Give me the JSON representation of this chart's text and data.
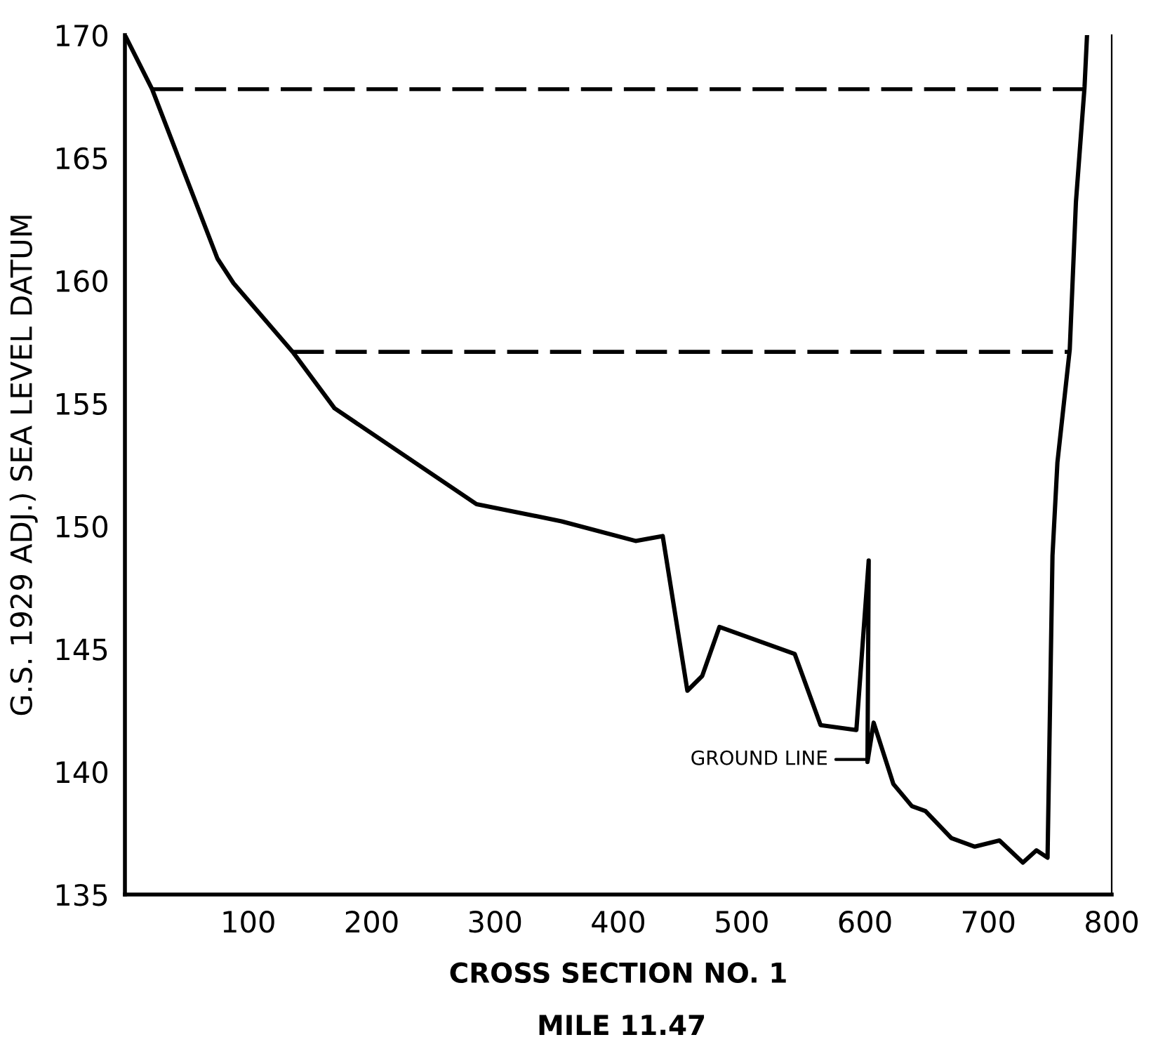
{
  "chart_data": {
    "type": "line",
    "xlabel": "CROSS SECTION NO. 1",
    "ylabel": "G.S. 1929 ADJ.) SEA LEVEL DATUM",
    "annotations": [
      "MILE 11.47",
      {
        "text": "GROUND LINE",
        "x": 600,
        "y": 140.5
      }
    ],
    "series": [
      {
        "color": "#000000",
        "line_style": "solid",
        "x": [
          0,
          22,
          75,
          88,
          136,
          170,
          285,
          354,
          414,
          436,
          456,
          468,
          482,
          543,
          564,
          593,
          603,
          602,
          607,
          623,
          638,
          649,
          670,
          689,
          709,
          728,
          739,
          748,
          752,
          756,
          766,
          771,
          778,
          780
        ],
        "values": [
          170,
          167.8,
          160.9,
          159.9,
          157.1,
          154.8,
          150.9,
          150.2,
          149.4,
          149.6,
          143.3,
          143.9,
          145.9,
          144.8,
          141.9,
          141.7,
          148.6,
          140.4,
          142.0,
          139.5,
          138.6,
          138.4,
          137.3,
          136.95,
          137.2,
          136.3,
          136.8,
          136.5,
          148.8,
          152.6,
          157.2,
          163.2,
          167.9,
          170
        ]
      },
      {
        "color": "#000000",
        "line_style": "dashed",
        "x": [
          22,
          778
        ],
        "values": [
          167.8,
          167.8
        ]
      },
      {
        "color": "#000000",
        "line_style": "dashed",
        "x": [
          136,
          766
        ],
        "values": [
          157.1,
          157.1
        ]
      }
    ],
    "xlim": [
      0,
      800
    ],
    "xticks": [
      100,
      200,
      300,
      400,
      500,
      600,
      700,
      800
    ],
    "ylim": [
      135,
      170
    ],
    "yticks": [
      135,
      140,
      145,
      150,
      155,
      160,
      165,
      170
    ],
    "grid": false,
    "marker": "none"
  }
}
